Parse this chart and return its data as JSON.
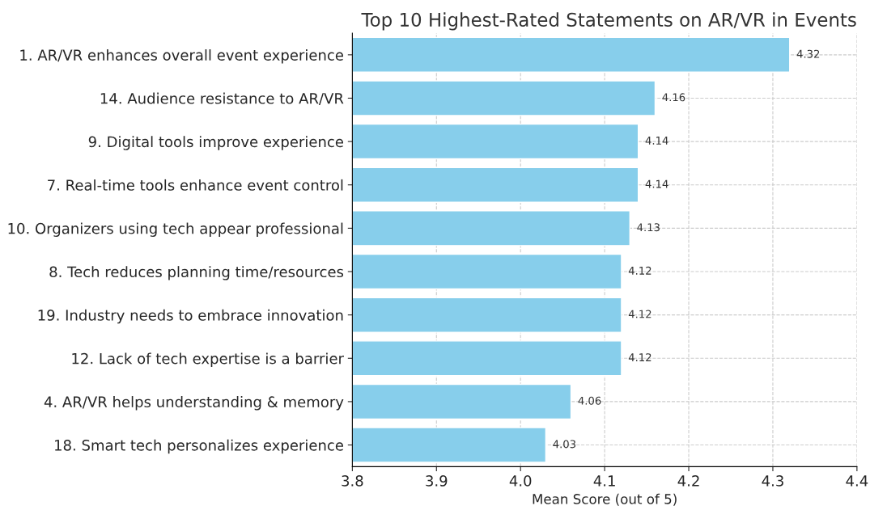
{
  "chart_data": {
    "type": "bar",
    "orientation": "horizontal",
    "title": "Top 10 Highest-Rated Statements on AR/VR in Events",
    "xlabel": "Mean Score (out of 5)",
    "categories": [
      "1. AR/VR enhances overall event experience",
      "14. Audience resistance to AR/VR",
      "9. Digital tools improve experience",
      "7. Real-time tools enhance event control",
      "10. Organizers using tech appear professional",
      "8. Tech reduces planning time/resources",
      "19. Industry needs to embrace innovation",
      "12. Lack of tech expertise is a barrier",
      "4. AR/VR helps understanding & memory",
      "18. Smart tech personalizes experience"
    ],
    "values": [
      4.32,
      4.16,
      4.14,
      4.14,
      4.13,
      4.12,
      4.12,
      4.12,
      4.06,
      4.03
    ],
    "color": "#87ceeb",
    "data_labels": true,
    "xlim": [
      3.8,
      4.4
    ],
    "xticks": [
      3.8,
      3.9,
      {
        "value": 4,
        "label": "4.0"
      },
      4.1,
      4.2,
      4.3,
      4.4
    ],
    "grid": true
  }
}
